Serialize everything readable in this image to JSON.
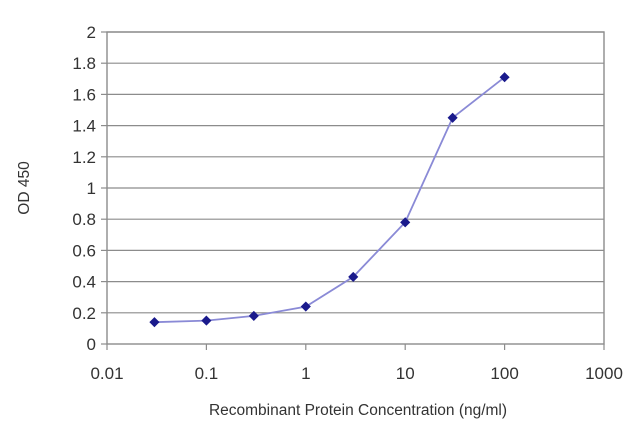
{
  "chart_data": {
    "type": "line",
    "title": "",
    "xlabel": "Recombinant Protein Concentration (ng/ml)",
    "ylabel": "OD 450",
    "x_scale": "log",
    "xlim": [
      0.01,
      1000
    ],
    "ylim": [
      0,
      2
    ],
    "x_ticks": [
      0.01,
      0.1,
      1,
      10,
      100,
      1000
    ],
    "x_tick_labels": [
      "0.01",
      "0.1",
      "1",
      "10",
      "100",
      "1000"
    ],
    "y_ticks": [
      0,
      0.2,
      0.4,
      0.6,
      0.8,
      1,
      1.2,
      1.4,
      1.6,
      1.8,
      2
    ],
    "y_tick_labels": [
      "0",
      "0.2",
      "0.4",
      "0.6",
      "0.8",
      "1",
      "1.2",
      "1.4",
      "1.6",
      "1.8",
      "2"
    ],
    "grid": {
      "y": true,
      "x": false
    },
    "legend": "none",
    "series": [
      {
        "x": [
          0.03,
          0.1,
          0.3,
          1,
          3,
          10,
          30,
          100
        ],
        "y": [
          0.14,
          0.15,
          0.18,
          0.24,
          0.43,
          0.78,
          1.45,
          1.71
        ],
        "marker_color": "#1a1a8c",
        "line_color": "#8a8ad6"
      }
    ],
    "colors": {
      "plot_background": "#ffffff",
      "grid": "#8c8c8c",
      "frame": "#8c8c8c",
      "text": "#333333"
    }
  }
}
